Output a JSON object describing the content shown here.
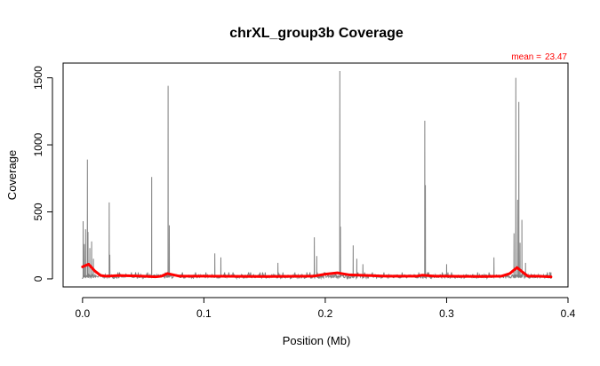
{
  "chart_data": {
    "type": "line",
    "title": "chrXL_group3b Coverage",
    "xlabel": "Position (Mb)",
    "ylabel": "Coverage",
    "xlim": [
      -0.016,
      0.4
    ],
    "ylim": [
      -60,
      1610
    ],
    "x_ticks": [
      0.0,
      0.1,
      0.2,
      0.3,
      0.4
    ],
    "x_tick_labels": [
      "0.0",
      "0.1",
      "0.2",
      "0.3",
      "0.4"
    ],
    "y_ticks": [
      0,
      500,
      1000,
      1500
    ],
    "y_tick_labels": [
      "0",
      "500",
      "1000",
      "1500"
    ],
    "grid": false,
    "annotation": {
      "label": "mean =",
      "value": "23.47"
    },
    "coverage_color": "#808080",
    "smooth_color": "#ff0000",
    "series": [
      {
        "kind": "coverage",
        "x_range": [
          0.0,
          0.386
        ],
        "baseline": 22,
        "peaks": [
          [
            0.0005,
            430
          ],
          [
            0.0015,
            260
          ],
          [
            0.0025,
            370
          ],
          [
            0.004,
            890
          ],
          [
            0.0045,
            350
          ],
          [
            0.006,
            230
          ],
          [
            0.0075,
            280
          ],
          [
            0.009,
            150
          ],
          [
            0.022,
            570
          ],
          [
            0.0225,
            180
          ],
          [
            0.057,
            760
          ],
          [
            0.0705,
            1440
          ],
          [
            0.0715,
            400
          ],
          [
            0.109,
            190
          ],
          [
            0.114,
            160
          ],
          [
            0.161,
            120
          ],
          [
            0.191,
            310
          ],
          [
            0.193,
            170
          ],
          [
            0.212,
            1550
          ],
          [
            0.2125,
            390
          ],
          [
            0.223,
            250
          ],
          [
            0.226,
            150
          ],
          [
            0.231,
            110
          ],
          [
            0.282,
            1180
          ],
          [
            0.2825,
            700
          ],
          [
            0.3,
            110
          ],
          [
            0.339,
            160
          ],
          [
            0.3555,
            340
          ],
          [
            0.357,
            1500
          ],
          [
            0.3585,
            590
          ],
          [
            0.3595,
            1320
          ],
          [
            0.3605,
            270
          ],
          [
            0.362,
            440
          ],
          [
            0.365,
            120
          ],
          [
            0.385,
            50
          ]
        ]
      },
      {
        "kind": "smoothed",
        "x": [
          0.0,
          0.005,
          0.01,
          0.015,
          0.02,
          0.03,
          0.05,
          0.06,
          0.065,
          0.07,
          0.075,
          0.08,
          0.1,
          0.15,
          0.19,
          0.2,
          0.21,
          0.22,
          0.25,
          0.275,
          0.28,
          0.29,
          0.3,
          0.33,
          0.345,
          0.352,
          0.358,
          0.362,
          0.367,
          0.375,
          0.386
        ],
        "y": [
          90,
          110,
          60,
          25,
          20,
          25,
          20,
          15,
          20,
          40,
          30,
          20,
          20,
          18,
          20,
          35,
          45,
          30,
          20,
          20,
          28,
          20,
          20,
          18,
          20,
          40,
          85,
          55,
          20,
          20,
          15
        ]
      }
    ]
  }
}
